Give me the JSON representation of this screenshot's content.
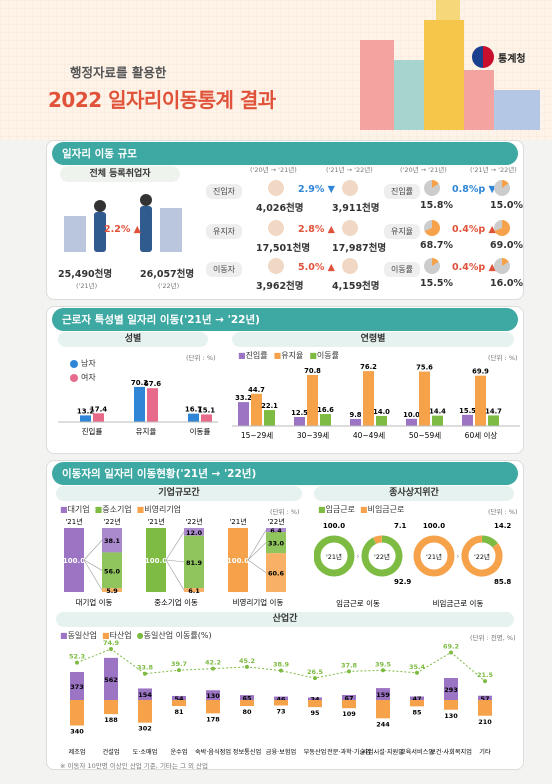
{
  "header": {
    "subtitle": "행정자료를 활용한",
    "title": "2022 일자리이동통계 결과",
    "logo": "통계청"
  },
  "sec1": {
    "title": "일자리 이동 규모",
    "total": {
      "label": "전체 등록취업자",
      "v21": "25,490천명",
      "p21": "('21년)",
      "v22": "26,057천명",
      "p22": "('22년)",
      "change": "2.2%"
    },
    "col_a": "('20년 → '21년)",
    "col_b": "('21년 → '22년)",
    "rows": [
      {
        "label": "진입자",
        "a": "4,026천명",
        "b": "3,911천명",
        "chg": "2.9%",
        "dir": "down",
        "rate_label": "진입률",
        "ra": "15.8%",
        "rb": "15.0%",
        "rchg": "0.8%p",
        "rdir": "down"
      },
      {
        "label": "유지자",
        "a": "17,501천명",
        "b": "17,987천명",
        "chg": "2.8%",
        "dir": "up",
        "rate_label": "유지율",
        "ra": "68.7%",
        "rb": "69.0%",
        "rchg": "0.4%p",
        "rdir": "up"
      },
      {
        "label": "이동자",
        "a": "3,962천명",
        "b": "4,159천명",
        "chg": "5.0%",
        "dir": "up",
        "rate_label": "이동률",
        "ra": "15.5%",
        "rb": "16.0%",
        "rchg": "0.4%p",
        "rdir": "up"
      }
    ]
  },
  "sec2": {
    "title": "근로자 특성별 일자리 이동('21년 → '22년)",
    "gender_title": "성별",
    "gender_legend": [
      "남자",
      "여자"
    ],
    "unit": "(단위 : %)",
    "age_title": "연령별",
    "age_legend": [
      "진입률",
      "유지율",
      "이동률"
    ]
  },
  "sec3": {
    "title": "이동자의 일자리 이동현황('21년 → '22년)",
    "size_title": "기업규모간",
    "size_legend": [
      "대기업",
      "중소기업",
      "비영리기업"
    ],
    "unit": "(단위 : %)",
    "y21": "'21년",
    "y22": "'22년",
    "status_title": "종사상지위간",
    "status_legend": [
      "임금근로",
      "비임금근로"
    ],
    "ind_title": "산업간",
    "ind_legend": [
      "동일산업",
      "타산업",
      "동일산업 이동률(%)"
    ],
    "ind_unit": "(단위 : 천명, %)",
    "footnote": "※ 이동자 10만명 이상인 산업 기준, 기타는 그 외 산업"
  },
  "colors": {
    "teal": "#3ea8a3",
    "purple": "#9b74c4",
    "orange": "#f6a24b",
    "green": "#7dbb42",
    "red": "#e0533a",
    "blue": "#2f86d6",
    "pink": "#e86a8a"
  },
  "chart_data": [
    {
      "type": "bar",
      "title": "성별",
      "categories": [
        "진입률",
        "유지율",
        "이동률"
      ],
      "series": [
        {
          "name": "남자",
          "values": [
            13.2,
            70.2,
            16.7
          ]
        },
        {
          "name": "여자",
          "values": [
            17.4,
            67.6,
            15.1
          ]
        }
      ]
    },
    {
      "type": "bar",
      "title": "연령별",
      "categories": [
        "15~29세",
        "30~39세",
        "40~49세",
        "50~59세",
        "60세 이상"
      ],
      "series": [
        {
          "name": "진입률",
          "values": [
            33.2,
            12.5,
            9.8,
            10.0,
            15.5
          ]
        },
        {
          "name": "유지율",
          "values": [
            44.7,
            70.8,
            76.2,
            75.6,
            69.9
          ]
        },
        {
          "name": "이동률",
          "values": [
            22.1,
            16.6,
            14.0,
            14.4,
            14.7
          ]
        }
      ]
    },
    {
      "type": "bar",
      "title": "기업규모간",
      "categories": [
        "대기업 이동",
        "중소기업 이동",
        "비영리기업 이동"
      ],
      "series": [
        {
          "name": "'21년",
          "values": [
            100.0,
            100.0,
            100.0
          ]
        },
        {
          "name": "대기업",
          "values": [
            38.1,
            12.0,
            6.4
          ]
        },
        {
          "name": "중소기업",
          "values": [
            56.0,
            81.9,
            33.0
          ]
        },
        {
          "name": "비영리기업",
          "values": [
            5.9,
            6.1,
            60.6
          ]
        }
      ]
    },
    {
      "type": "pie",
      "title": "종사상지위간",
      "categories": [
        "임금근로 이동",
        "비임금근로 이동"
      ],
      "series": [
        {
          "name": "'21년",
          "values": [
            100.0,
            100.0
          ]
        },
        {
          "name": "임금근로",
          "values": [
            92.9,
            14.2
          ]
        },
        {
          "name": "비임금근로",
          "values": [
            7.1,
            85.8
          ]
        }
      ]
    },
    {
      "type": "bar",
      "title": "산업간",
      "categories": [
        "제조업",
        "건설업",
        "도·소매업",
        "운수업",
        "숙박·음식점업",
        "정보통신업",
        "금융·보험업",
        "부동산업",
        "전문·과학·기술업",
        "사업시설·지원업",
        "교육서비스업",
        "보건·사회복지업",
        "기타"
      ],
      "series": [
        {
          "name": "동일산업",
          "values": [
            373,
            562,
            154,
            54,
            130,
            65,
            46,
            34,
            67,
            159,
            47,
            293,
            57
          ]
        },
        {
          "name": "타산업",
          "values": [
            340,
            188,
            302,
            81,
            178,
            80,
            73,
            95,
            109,
            244,
            85,
            130,
            210
          ]
        },
        {
          "name": "동일산업 이동률(%)",
          "values": [
            52.3,
            74.9,
            33.8,
            39.7,
            42.2,
            45.2,
            38.9,
            26.5,
            37.8,
            39.5,
            35.4,
            69.2,
            21.5
          ]
        }
      ]
    }
  ]
}
